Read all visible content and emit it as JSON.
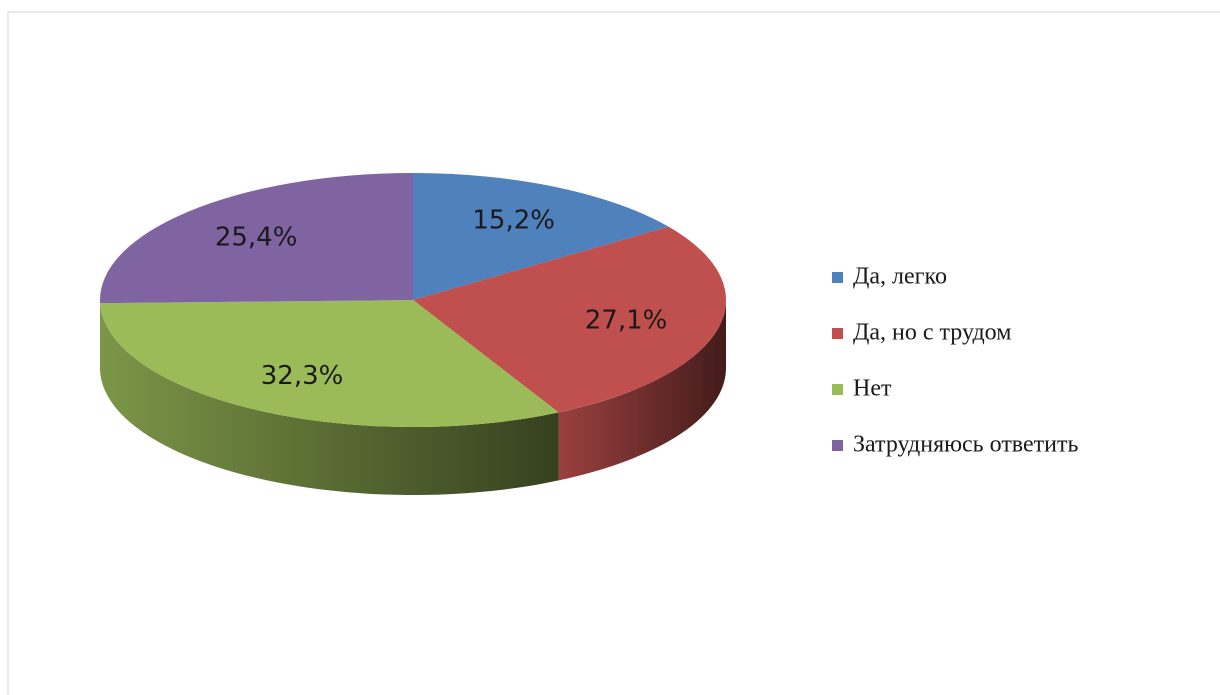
{
  "chart_data": {
    "type": "pie3d",
    "categories": [
      "Да, легко",
      "Да, но с трудом",
      "Нет",
      "Затрудняюсь ответить"
    ],
    "values": [
      15.2,
      27.1,
      32.3,
      25.4
    ],
    "value_labels": [
      "15,2%",
      "27,1%",
      "32,3%",
      "25,4%"
    ],
    "colors": [
      "#4f81bd",
      "#c0504d",
      "#9bbb59",
      "#8064a2"
    ],
    "legend": "right"
  }
}
